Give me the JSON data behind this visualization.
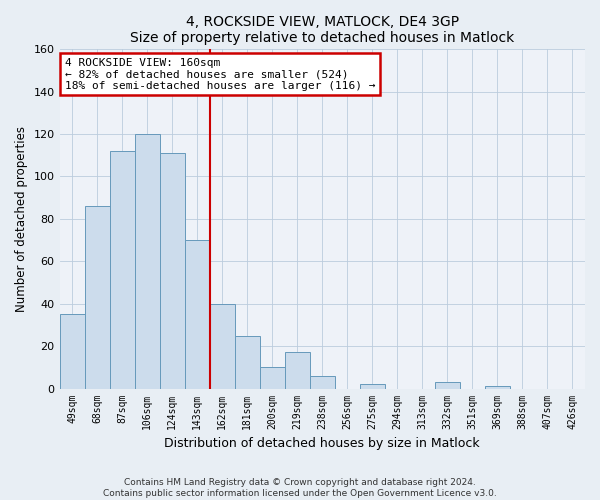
{
  "title": "4, ROCKSIDE VIEW, MATLOCK, DE4 3GP",
  "subtitle": "Size of property relative to detached houses in Matlock",
  "xlabel": "Distribution of detached houses by size in Matlock",
  "ylabel": "Number of detached properties",
  "bar_labels": [
    "49sqm",
    "68sqm",
    "87sqm",
    "106sqm",
    "124sqm",
    "143sqm",
    "162sqm",
    "181sqm",
    "200sqm",
    "219sqm",
    "238sqm",
    "256sqm",
    "275sqm",
    "294sqm",
    "313sqm",
    "332sqm",
    "351sqm",
    "369sqm",
    "388sqm",
    "407sqm",
    "426sqm"
  ],
  "bar_values": [
    35,
    86,
    112,
    120,
    111,
    70,
    40,
    25,
    10,
    17,
    6,
    0,
    2,
    0,
    0,
    3,
    0,
    1,
    0,
    0,
    0
  ],
  "bar_color": "#ccdcec",
  "bar_edge_color": "#6699bb",
  "marker_line_color": "#cc0000",
  "annotation_line1": "4 ROCKSIDE VIEW: 160sqm",
  "annotation_line2": "← 82% of detached houses are smaller (524)",
  "annotation_line3": "18% of semi-detached houses are larger (116) →",
  "ylim": [
    0,
    160
  ],
  "yticks": [
    0,
    20,
    40,
    60,
    80,
    100,
    120,
    140,
    160
  ],
  "footer_line1": "Contains HM Land Registry data © Crown copyright and database right 2024.",
  "footer_line2": "Contains public sector information licensed under the Open Government Licence v3.0.",
  "background_color": "#e8eef4",
  "plot_background_color": "#eef2f8",
  "grid_color": "#bbccdd"
}
